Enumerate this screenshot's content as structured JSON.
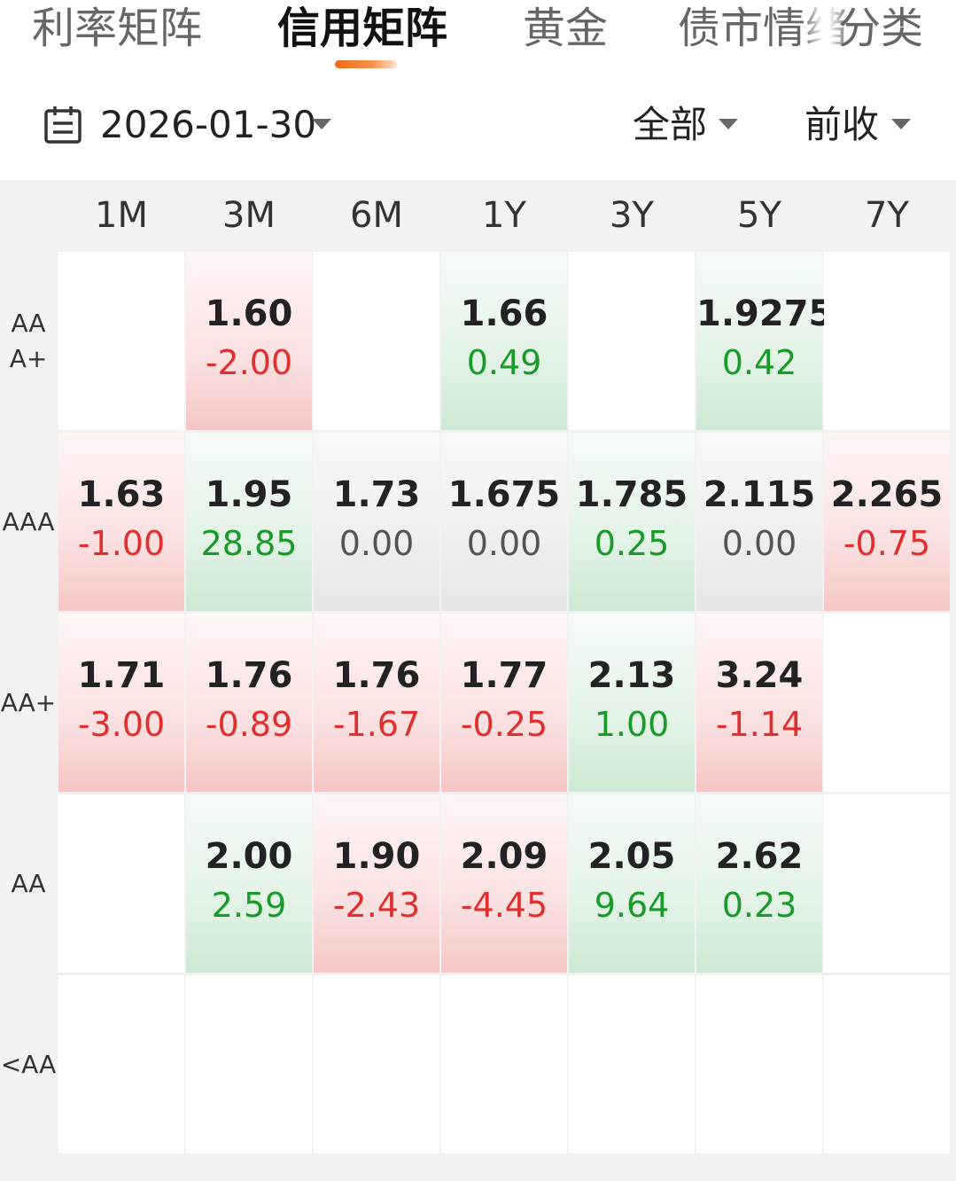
{
  "tabs": [
    {
      "label": "利率矩阵",
      "active": false
    },
    {
      "label": "信用矩阵",
      "active": true
    },
    {
      "label": "黄金",
      "active": false
    },
    {
      "label": "债市情绪",
      "active": false
    },
    {
      "label": "分类",
      "active": false
    }
  ],
  "filter": {
    "date": "2026-01-30",
    "scope": "全部",
    "basis": "前收"
  },
  "colors": {
    "accent": "#f26a1b",
    "up": "#e02f2f",
    "down": "#1a9a2a",
    "up_bg": "#fbe1e1",
    "down_bg": "#e3f3e6",
    "flat_bg": "#efefef"
  },
  "matrix": {
    "columns": [
      "1M",
      "3M",
      "6M",
      "1Y",
      "3Y",
      "5Y",
      "7Y"
    ],
    "rows": [
      {
        "label": "AAA+",
        "cells": [
          null,
          {
            "rate": "1.60",
            "change": "-2.00",
            "trend": "up"
          },
          null,
          {
            "rate": "1.66",
            "change": "0.49",
            "trend": "down"
          },
          null,
          {
            "rate": "1.9275",
            "change": "0.42",
            "trend": "down"
          },
          null
        ]
      },
      {
        "label": "AAA",
        "cells": [
          {
            "rate": "1.63",
            "change": "-1.00",
            "trend": "up"
          },
          {
            "rate": "1.95",
            "change": "28.85",
            "trend": "down"
          },
          {
            "rate": "1.73",
            "change": "0.00",
            "trend": "flat"
          },
          {
            "rate": "1.675",
            "change": "0.00",
            "trend": "flat"
          },
          {
            "rate": "1.785",
            "change": "0.25",
            "trend": "down"
          },
          {
            "rate": "2.115",
            "change": "0.00",
            "trend": "flat"
          },
          {
            "rate": "2.265",
            "change": "-0.75",
            "trend": "up"
          }
        ]
      },
      {
        "label": "AA+",
        "cells": [
          {
            "rate": "1.71",
            "change": "-3.00",
            "trend": "up"
          },
          {
            "rate": "1.76",
            "change": "-0.89",
            "trend": "up"
          },
          {
            "rate": "1.76",
            "change": "-1.67",
            "trend": "up"
          },
          {
            "rate": "1.77",
            "change": "-0.25",
            "trend": "up"
          },
          {
            "rate": "2.13",
            "change": "1.00",
            "trend": "down"
          },
          {
            "rate": "3.24",
            "change": "-1.14",
            "trend": "up"
          },
          null
        ]
      },
      {
        "label": "AA",
        "cells": [
          null,
          {
            "rate": "2.00",
            "change": "2.59",
            "trend": "down"
          },
          {
            "rate": "1.90",
            "change": "-2.43",
            "trend": "up"
          },
          {
            "rate": "2.09",
            "change": "-4.45",
            "trend": "up"
          },
          {
            "rate": "2.05",
            "change": "9.64",
            "trend": "down"
          },
          {
            "rate": "2.62",
            "change": "0.23",
            "trend": "down"
          },
          null
        ]
      },
      {
        "label": "<AA",
        "cells": [
          null,
          null,
          null,
          null,
          null,
          null,
          null
        ]
      }
    ]
  }
}
